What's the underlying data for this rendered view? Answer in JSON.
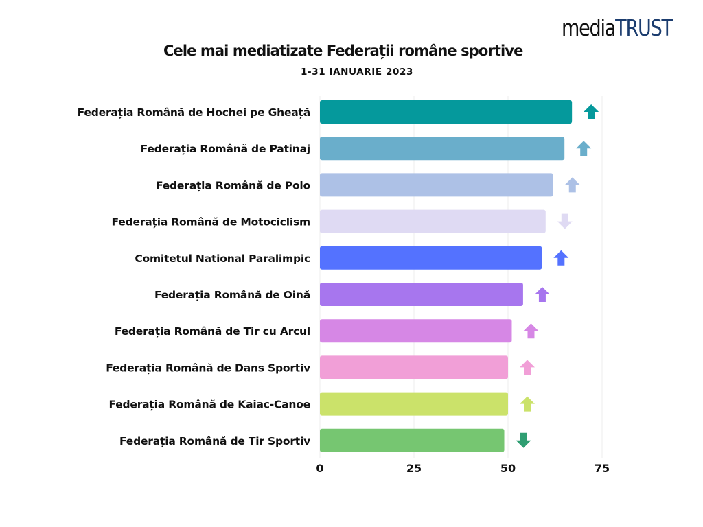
{
  "brand": {
    "part1": "media",
    "part2": "TRUST"
  },
  "chart_data": {
    "type": "bar",
    "orientation": "horizontal",
    "title": "Cele mai mediatizate Federații române sportive",
    "subtitle": "1-31 IANUARIE 2023",
    "xlabel": "",
    "ylabel": "",
    "xlim": [
      0,
      75
    ],
    "xticks": [
      0,
      25,
      50,
      75
    ],
    "grid": true,
    "legend": "none",
    "categories": [
      "Federația Română de Hochei pe Gheață",
      "Federația Română de Patinaj",
      "Federația Română de Polo",
      "Federația Română de Motociclism",
      "Comitetul National Paralimpic",
      "Federația Română de Oină",
      "Federația Română de Tir cu Arcul",
      "Federația Română de Dans Sportiv",
      "Federația Română de Kaiac-Canoe",
      "Federația Română de Tir Sportiv"
    ],
    "values": [
      67,
      65,
      62,
      60,
      59,
      54,
      51,
      50,
      50,
      49
    ],
    "trend": [
      "up",
      "up",
      "up",
      "down",
      "up",
      "up",
      "up",
      "up",
      "up",
      "down"
    ],
    "colors": [
      "#05999c",
      "#6aaecb",
      "#adc1e6",
      "#dfdaf3",
      "#5472ff",
      "#a776ee",
      "#d687e5",
      "#f19fd7",
      "#cbe26a",
      "#76c671"
    ],
    "arrow_colors": [
      "#05999c",
      "#6aaecb",
      "#adc1e6",
      "#dfdaf3",
      "#5472ff",
      "#a776ee",
      "#d687e5",
      "#f19fd7",
      "#cbe26a",
      "#2f9e72"
    ]
  }
}
